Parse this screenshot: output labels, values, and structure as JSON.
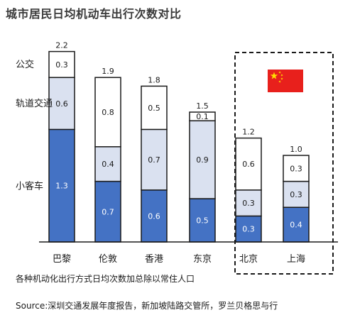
{
  "title": "城市居民日均机动车出行次数对比",
  "note": "各种机动化出行方式日均次数加总除以常住人口",
  "source": "Source:深圳交通发展年度报告，新加坡陆路交管所，罗兰贝格思与行",
  "colors": {
    "car": "#4472c4",
    "rail": "#dae1f0",
    "bus": "#ffffff",
    "outline": "#1a1a1a",
    "flag_red": "#e8201c",
    "flag_star": "#ffde00"
  },
  "flag_icon": "china-flag-icon",
  "chart_data": {
    "type": "bar",
    "stacked": true,
    "categories": [
      "巴黎",
      "伦敦",
      "香港",
      "东京",
      "北京",
      "上海"
    ],
    "series": [
      {
        "name": "小客车",
        "values": [
          1.3,
          0.7,
          0.6,
          0.5,
          0.3,
          0.4
        ]
      },
      {
        "name": "轨道交通",
        "values": [
          0.6,
          0.4,
          0.7,
          0.9,
          0.3,
          0.3
        ]
      },
      {
        "name": "公交",
        "values": [
          0.3,
          0.8,
          0.5,
          0.1,
          0.6,
          0.3
        ]
      }
    ],
    "totals": [
      "2.2",
      "1.9",
      "1.8",
      "1.5",
      "1.2",
      "1.0"
    ],
    "highlighted_categories": [
      "北京",
      "上海"
    ],
    "ylim": [
      0,
      2.2
    ],
    "legend_placement": "left"
  }
}
